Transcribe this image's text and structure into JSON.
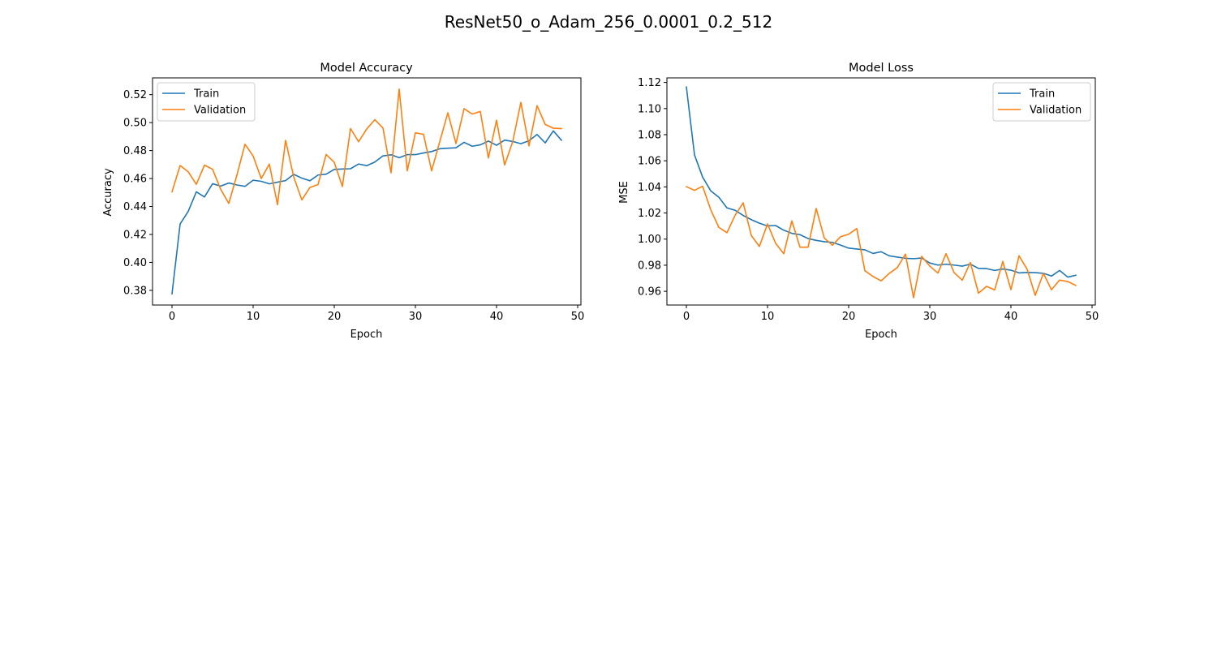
{
  "figure": {
    "suptitle": "ResNet50_o_Adam_256_0.0001_0.2_512"
  },
  "colors": {
    "train": "#1f77b4",
    "validation": "#ff7f0e"
  },
  "chart_data": [
    {
      "type": "line",
      "title": "Model Accuracy",
      "xlabel": "Epoch",
      "ylabel": "Accuracy",
      "xlim": [
        -2.4,
        50.4
      ],
      "ylim": [
        0.3695,
        0.532
      ],
      "xticks": [
        0,
        10,
        20,
        30,
        40,
        50
      ],
      "yticks": [
        0.38,
        0.4,
        0.42,
        0.44,
        0.46,
        0.48,
        0.5,
        0.52
      ],
      "ytick_labels": [
        "0.38",
        "0.40",
        "0.42",
        "0.44",
        "0.46",
        "0.48",
        "0.50",
        "0.52"
      ],
      "legend_position": "upper-left",
      "grid": false,
      "series": [
        {
          "name": "Train",
          "x": [
            0,
            1,
            2,
            3,
            4,
            5,
            6,
            7,
            8,
            9,
            10,
            11,
            12,
            13,
            14,
            15,
            16,
            17,
            18,
            19,
            20,
            21,
            22,
            23,
            24,
            25,
            26,
            27,
            28,
            29,
            30,
            31,
            32,
            33,
            34,
            35,
            36,
            37,
            38,
            39,
            40,
            41,
            42,
            43,
            44,
            45,
            46,
            47,
            48
          ],
          "y": [
            0.3775,
            0.4275,
            0.4365,
            0.4505,
            0.4468,
            0.4563,
            0.4546,
            0.4568,
            0.4554,
            0.4544,
            0.4588,
            0.458,
            0.4562,
            0.4574,
            0.4585,
            0.463,
            0.4603,
            0.4584,
            0.4625,
            0.4631,
            0.4665,
            0.4668,
            0.467,
            0.4704,
            0.4692,
            0.4718,
            0.4762,
            0.477,
            0.4749,
            0.4771,
            0.4771,
            0.4783,
            0.4793,
            0.4813,
            0.4817,
            0.482,
            0.4859,
            0.4831,
            0.4841,
            0.4868,
            0.4838,
            0.4875,
            0.4865,
            0.4849,
            0.487,
            0.4915,
            0.4855,
            0.4941,
            0.4874
          ]
        },
        {
          "name": "Validation",
          "x": [
            0,
            1,
            2,
            3,
            4,
            5,
            6,
            7,
            8,
            9,
            10,
            11,
            12,
            13,
            14,
            15,
            16,
            17,
            18,
            19,
            20,
            21,
            22,
            23,
            24,
            25,
            26,
            27,
            28,
            29,
            30,
            31,
            32,
            33,
            34,
            35,
            36,
            37,
            38,
            39,
            40,
            41,
            42,
            43,
            44,
            45,
            46,
            47,
            48
          ],
          "y": [
            0.4505,
            0.4693,
            0.4648,
            0.4559,
            0.4696,
            0.4666,
            0.4523,
            0.4422,
            0.4625,
            0.4845,
            0.4761,
            0.46,
            0.4703,
            0.4413,
            0.4873,
            0.4612,
            0.4447,
            0.4536,
            0.4557,
            0.4772,
            0.4716,
            0.4543,
            0.4958,
            0.4863,
            0.4954,
            0.5021,
            0.4961,
            0.4641,
            0.524,
            0.4655,
            0.4927,
            0.4916,
            0.4655,
            0.4864,
            0.507,
            0.485,
            0.51,
            0.5061,
            0.508,
            0.4747,
            0.5017,
            0.4697,
            0.4865,
            0.5145,
            0.4833,
            0.5121,
            0.4987,
            0.496,
            0.4957
          ]
        }
      ]
    },
    {
      "type": "line",
      "title": "Model Loss",
      "xlabel": "Epoch",
      "ylabel": "MSE",
      "xlim": [
        -2.4,
        50.4
      ],
      "ylim": [
        0.9495,
        1.1235
      ],
      "xticks": [
        0,
        10,
        20,
        30,
        40,
        50
      ],
      "yticks": [
        0.96,
        0.98,
        1.0,
        1.02,
        1.04,
        1.06,
        1.08,
        1.1,
        1.12
      ],
      "ytick_labels": [
        "0.96",
        "0.98",
        "1.00",
        "1.02",
        "1.04",
        "1.06",
        "1.08",
        "1.10",
        "1.12"
      ],
      "legend_position": "upper-right",
      "grid": false,
      "series": [
        {
          "name": "Train",
          "x": [
            0,
            1,
            2,
            3,
            4,
            5,
            6,
            7,
            8,
            9,
            10,
            11,
            12,
            13,
            14,
            15,
            16,
            17,
            18,
            19,
            20,
            21,
            22,
            23,
            24,
            25,
            26,
            27,
            28,
            29,
            30,
            31,
            32,
            33,
            34,
            35,
            36,
            37,
            38,
            39,
            40,
            41,
            42,
            43,
            44,
            45,
            46,
            47,
            48
          ],
          "y": [
            1.1165,
            1.0645,
            1.0475,
            1.037,
            1.0321,
            1.0239,
            1.0221,
            1.0181,
            1.0149,
            1.0122,
            1.0101,
            1.0104,
            1.0068,
            1.0044,
            1.0034,
            1.0004,
            0.999,
            0.998,
            0.9975,
            0.9954,
            0.9931,
            0.9924,
            0.9918,
            0.989,
            0.9903,
            0.9872,
            0.9862,
            0.9853,
            0.985,
            0.9855,
            0.9817,
            0.9801,
            0.9808,
            0.9801,
            0.9793,
            0.9808,
            0.9776,
            0.9774,
            0.976,
            0.9771,
            0.9762,
            0.9741,
            0.9745,
            0.9743,
            0.9738,
            0.9717,
            0.976,
            0.9709,
            0.9723
          ]
        },
        {
          "name": "Validation",
          "x": [
            0,
            1,
            2,
            3,
            4,
            5,
            6,
            7,
            8,
            9,
            10,
            11,
            12,
            13,
            14,
            15,
            16,
            17,
            18,
            19,
            20,
            21,
            22,
            23,
            24,
            25,
            26,
            27,
            28,
            29,
            30,
            31,
            32,
            33,
            34,
            35,
            36,
            37,
            38,
            39,
            40,
            41,
            42,
            43,
            44,
            45,
            46,
            47,
            48
          ],
          "y": [
            1.0402,
            1.0373,
            1.0405,
            1.0225,
            1.009,
            1.0049,
            1.0182,
            1.0278,
            1.0028,
            0.9944,
            1.0116,
            0.9968,
            0.9888,
            1.014,
            0.9938,
            0.9938,
            1.0235,
            1.0008,
            0.9953,
            1.0018,
            1.0037,
            1.0081,
            0.9758,
            0.9714,
            0.968,
            0.9737,
            0.9782,
            0.9885,
            0.9551,
            0.9868,
            0.9793,
            0.974,
            0.9888,
            0.9743,
            0.9685,
            0.9821,
            0.9586,
            0.9638,
            0.9611,
            0.9829,
            0.9613,
            0.9872,
            0.9769,
            0.9569,
            0.9738,
            0.9612,
            0.9686,
            0.9675,
            0.9645
          ]
        }
      ]
    }
  ]
}
